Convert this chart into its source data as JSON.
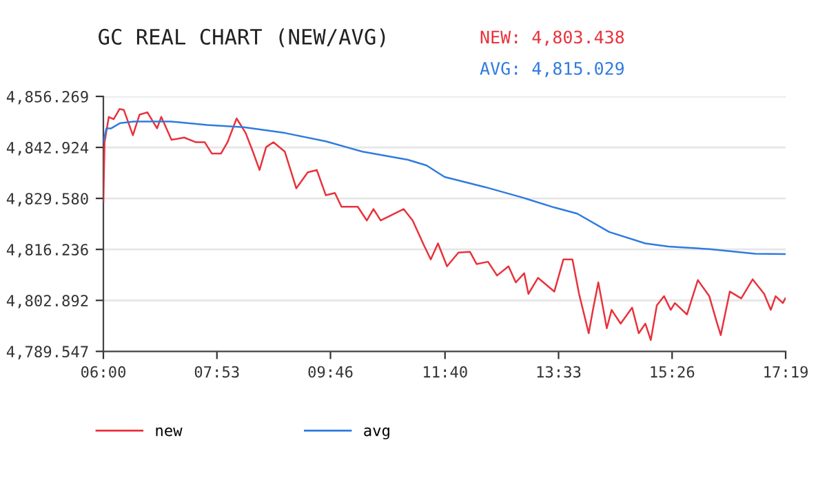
{
  "chart_data": {
    "type": "line",
    "title": "GC REAL CHART (NEW/AVG)",
    "annotations": [
      "NEW: 4,803.438",
      "AVG: 4,815.029"
    ],
    "xlim": [
      6,
      17.3167
    ],
    "xticks": [
      {
        "value": 6,
        "label": "06:00"
      },
      {
        "value": 7.8833,
        "label": "07:53"
      },
      {
        "value": 9.7667,
        "label": "09:46"
      },
      {
        "value": 11.6667,
        "label": "11:40"
      },
      {
        "value": 13.55,
        "label": "13:33"
      },
      {
        "value": 15.4333,
        "label": "15:26"
      },
      {
        "value": 17.3167,
        "label": "17:19"
      }
    ],
    "ylim": [
      4789.547,
      4856.269
    ],
    "yticks": [
      {
        "value": 4789.547,
        "label": "4,789.547"
      },
      {
        "value": 4802.892,
        "label": "4,802.892"
      },
      {
        "value": 4816.236,
        "label": "4,816.236"
      },
      {
        "value": 4829.58,
        "label": "4,829.580"
      },
      {
        "value": 4842.924,
        "label": "4,842.924"
      },
      {
        "value": 4856.269,
        "label": "4,856.269"
      }
    ],
    "grid": "y",
    "legend": "bottom",
    "marker": "none",
    "line_style": "solid",
    "series": [
      {
        "name": "new",
        "color": "#e8323c",
        "x": [
          6.0,
          6.02,
          6.09,
          6.17,
          6.27,
          6.34,
          6.49,
          6.6,
          6.73,
          6.89,
          6.96,
          7.13,
          7.34,
          7.53,
          7.68,
          7.8,
          7.95,
          8.06,
          8.21,
          8.36,
          8.48,
          8.59,
          8.7,
          8.82,
          9.01,
          9.2,
          9.39,
          9.54,
          9.69,
          9.84,
          9.95,
          10.22,
          10.37,
          10.48,
          10.6,
          10.75,
          10.98,
          11.13,
          11.32,
          11.43,
          11.55,
          11.7,
          11.89,
          12.08,
          12.19,
          12.38,
          12.53,
          12.72,
          12.84,
          12.98,
          13.05,
          13.21,
          13.48,
          13.63,
          13.78,
          13.89,
          14.05,
          14.12,
          14.21,
          14.35,
          14.43,
          14.58,
          14.77,
          14.88,
          14.99,
          15.08,
          15.18,
          15.3,
          15.41,
          15.48,
          15.68,
          15.86,
          16.05,
          16.17,
          16.24,
          16.39,
          16.58,
          16.77,
          16.96,
          17.07,
          17.15,
          17.27,
          17.31
        ],
        "values": [
          4828.6,
          4844.3,
          4850.9,
          4850.3,
          4853.0,
          4852.7,
          4846.1,
          4851.5,
          4852.1,
          4847.9,
          4850.9,
          4844.9,
          4845.5,
          4844.3,
          4844.3,
          4841.3,
          4841.3,
          4844.3,
          4850.5,
          4846.7,
          4841.8,
          4837.0,
          4843.0,
          4844.3,
          4841.8,
          4832.2,
          4836.4,
          4837.0,
          4830.4,
          4831.0,
          4827.4,
          4827.4,
          4823.8,
          4826.8,
          4823.8,
          4825.0,
          4826.8,
          4823.8,
          4817.2,
          4813.6,
          4817.8,
          4811.8,
          4815.4,
          4815.6,
          4812.4,
          4813.0,
          4809.4,
          4811.8,
          4807.6,
          4810.0,
          4804.6,
          4808.8,
          4805.2,
          4813.6,
          4813.6,
          4804.6,
          4794.3,
          4800.4,
          4807.6,
          4795.6,
          4800.4,
          4796.8,
          4801.0,
          4794.3,
          4796.8,
          4792.5,
          4801.6,
          4804.0,
          4800.4,
          4802.2,
          4799.2,
          4808.2,
          4804.0,
          4797.4,
          4793.8,
          4805.2,
          4803.4,
          4808.4,
          4804.6,
          4800.4,
          4804.0,
          4802.2,
          4803.4
        ]
      },
      {
        "name": "avg",
        "color": "#2f7be0",
        "x": [
          6.0,
          6.05,
          6.13,
          6.28,
          6.51,
          7.11,
          7.72,
          8.33,
          9.01,
          9.69,
          10.3,
          11.05,
          11.36,
          11.66,
          11.81,
          12.34,
          12.95,
          13.48,
          13.86,
          14.39,
          14.99,
          15.37,
          16.05,
          16.81,
          17.31
        ],
        "values": [
          4844.3,
          4847.9,
          4847.9,
          4849.3,
          4849.7,
          4849.7,
          4848.8,
          4848.2,
          4846.7,
          4844.5,
          4841.8,
          4839.7,
          4838.2,
          4835.2,
          4834.6,
          4832.5,
          4829.8,
          4827.2,
          4825.6,
          4820.8,
          4817.8,
          4817.0,
          4816.3,
          4815.1,
          4815.0
        ]
      }
    ]
  }
}
